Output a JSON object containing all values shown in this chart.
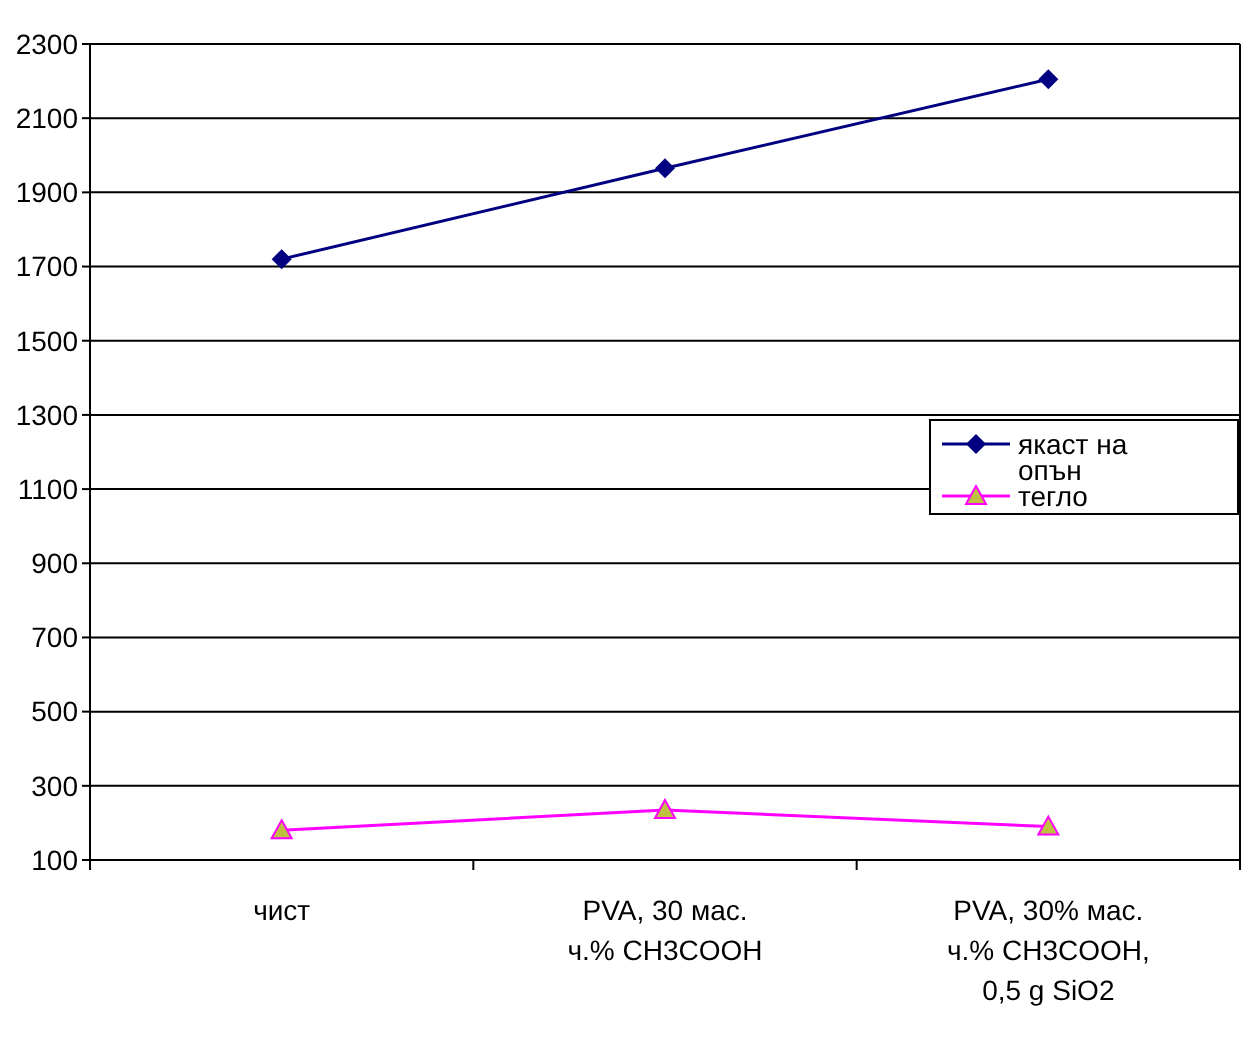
{
  "chart_data": {
    "type": "line",
    "categories": [
      "чист",
      "PVA, 30 мас. ч.% CH3COOH",
      "PVA, 30% мас. ч.% CH3COOH, 0,5 g SiO2"
    ],
    "series": [
      {
        "name": "якаст на опън",
        "color": "#000080",
        "marker": "diamond",
        "values": [
          1720,
          1965,
          2205
        ]
      },
      {
        "name": "тегло",
        "color": "#ff00ff",
        "marker": "triangle",
        "values": [
          180,
          235,
          190
        ]
      }
    ],
    "ylim": [
      100,
      2300
    ],
    "yticks": [
      100,
      300,
      500,
      700,
      900,
      1100,
      1300,
      1500,
      1700,
      1900,
      2100,
      2300
    ],
    "grid": "y",
    "legend": "right"
  }
}
